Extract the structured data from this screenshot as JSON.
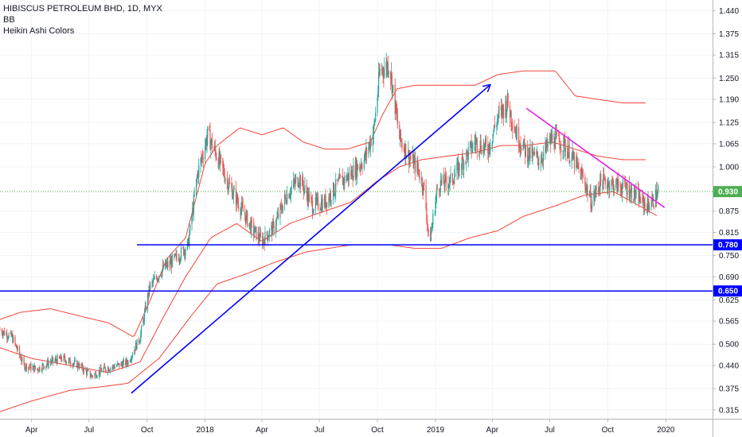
{
  "legend": {
    "symbol": "HIBISCUS PETROLEUM BHD, 1D, MYX",
    "indicator_1": "BB",
    "indicator_2": "Heikin Ashi Colors"
  },
  "chart_data": {
    "type": "candlestick",
    "symbol": "HIBISCUS PETROLEUM BHD",
    "interval": "1D",
    "exchange": "MYX",
    "y_ticks": [
      "1.440",
      "1.375",
      "1.315",
      "1.250",
      "1.190",
      "1.125",
      "1.065",
      "1.000",
      "0.875",
      "0.815",
      "0.750",
      "0.690",
      "0.625",
      "0.565",
      "0.500",
      "0.440",
      "0.375",
      "0.315"
    ],
    "y_range": [
      0.29,
      1.47
    ],
    "x_ticks": [
      "Apr",
      "Jul",
      "Oct",
      "2018",
      "Apr",
      "Jul",
      "Oct",
      "2019",
      "Apr",
      "Jul",
      "Oct",
      "2020"
    ],
    "x_tick_dates": [
      "2017-04-01",
      "2017-07-01",
      "2017-10-01",
      "2018-01-01",
      "2018-04-01",
      "2018-07-01",
      "2018-10-01",
      "2019-01-01",
      "2019-04-01",
      "2019-07-01",
      "2019-10-01",
      "2020-01-01"
    ],
    "x_range": [
      "2017-02-10",
      "2020-03-15"
    ],
    "current_price": {
      "label": "0.930",
      "value": 0.93,
      "color": "#4caf50"
    },
    "levels": [
      {
        "label": "0.780",
        "value": 0.78,
        "color": "#0000ff"
      },
      {
        "label": "0.650",
        "value": 0.65,
        "color": "#0000ff"
      }
    ],
    "trendlines": [
      {
        "name": "uptrend-arrow",
        "color": "#0000ff",
        "from": [
          "2017-09-06",
          0.362
        ],
        "to": [
          "2019-03-28",
          1.23
        ],
        "arrow": true
      },
      {
        "name": "downtrend-line",
        "color": "#e91ee6",
        "from": [
          "2019-05-25",
          1.165
        ],
        "to": [
          "2019-12-30",
          0.885
        ],
        "arrow": false
      }
    ],
    "price_series": {
      "color_up": "#26a69a",
      "color_down": "#ef5350",
      "points": [
        [
          "2017-02-10",
          0.54
        ],
        [
          "2017-03-01",
          0.52
        ],
        [
          "2017-03-20",
          0.44
        ],
        [
          "2017-04-10",
          0.43
        ],
        [
          "2017-05-01",
          0.45
        ],
        [
          "2017-05-20",
          0.46
        ],
        [
          "2017-06-15",
          0.44
        ],
        [
          "2017-07-05",
          0.41
        ],
        [
          "2017-07-25",
          0.43
        ],
        [
          "2017-08-15",
          0.44
        ],
        [
          "2017-09-01",
          0.45
        ],
        [
          "2017-09-20",
          0.52
        ],
        [
          "2017-10-05",
          0.66
        ],
        [
          "2017-10-25",
          0.71
        ],
        [
          "2017-11-15",
          0.74
        ],
        [
          "2017-12-05",
          0.78
        ],
        [
          "2017-12-20",
          0.98
        ],
        [
          "2018-01-05",
          1.09
        ],
        [
          "2018-01-20",
          1.03
        ],
        [
          "2018-02-05",
          0.96
        ],
        [
          "2018-02-25",
          0.89
        ],
        [
          "2018-03-15",
          0.83
        ],
        [
          "2018-04-01",
          0.79
        ],
        [
          "2018-04-20",
          0.83
        ],
        [
          "2018-05-10",
          0.92
        ],
        [
          "2018-05-30",
          0.97
        ],
        [
          "2018-06-20",
          0.89
        ],
        [
          "2018-07-10",
          0.9
        ],
        [
          "2018-07-30",
          0.95
        ],
        [
          "2018-08-20",
          0.98
        ],
        [
          "2018-09-10",
          1.02
        ],
        [
          "2018-09-25",
          1.1
        ],
        [
          "2018-10-05",
          1.27
        ],
        [
          "2018-10-20",
          1.29
        ],
        [
          "2018-11-05",
          1.08
        ],
        [
          "2018-11-20",
          1.03
        ],
        [
          "2018-12-05",
          0.99
        ],
        [
          "2018-12-15",
          0.93
        ],
        [
          "2018-12-22",
          0.78
        ],
        [
          "2019-01-05",
          0.95
        ],
        [
          "2019-01-25",
          0.96
        ],
        [
          "2019-02-15",
          1.02
        ],
        [
          "2019-03-05",
          1.07
        ],
        [
          "2019-03-25",
          1.05
        ],
        [
          "2019-04-10",
          1.14
        ],
        [
          "2019-04-25",
          1.18
        ],
        [
          "2019-05-10",
          1.09
        ],
        [
          "2019-05-25",
          1.04
        ],
        [
          "2019-06-15",
          1.02
        ],
        [
          "2019-07-05",
          1.08
        ],
        [
          "2019-07-25",
          1.06
        ],
        [
          "2019-08-10",
          1.01
        ],
        [
          "2019-08-25",
          0.96
        ],
        [
          "2019-09-05",
          0.9
        ],
        [
          "2019-09-20",
          0.96
        ],
        [
          "2019-10-10",
          0.95
        ],
        [
          "2019-10-30",
          0.94
        ],
        [
          "2019-11-15",
          0.92
        ],
        [
          "2019-12-01",
          0.89
        ],
        [
          "2019-12-10",
          0.9
        ],
        [
          "2019-12-20",
          0.93
        ]
      ]
    },
    "bollinger_bands": {
      "color": "#f44336",
      "upper": [
        [
          "2017-02-10",
          0.57
        ],
        [
          "2017-03-15",
          0.59
        ],
        [
          "2017-05-01",
          0.6
        ],
        [
          "2017-06-15",
          0.58
        ],
        [
          "2017-08-01",
          0.56
        ],
        [
          "2017-09-10",
          0.52
        ],
        [
          "2017-10-05",
          0.62
        ],
        [
          "2017-11-01",
          0.74
        ],
        [
          "2017-12-01",
          0.8
        ],
        [
          "2018-01-01",
          1.01
        ],
        [
          "2018-01-20",
          1.06
        ],
        [
          "2018-02-25",
          1.11
        ],
        [
          "2018-04-01",
          1.09
        ],
        [
          "2018-05-05",
          1.11
        ],
        [
          "2018-06-05",
          1.07
        ],
        [
          "2018-07-10",
          1.05
        ],
        [
          "2018-08-15",
          1.05
        ],
        [
          "2018-09-20",
          1.07
        ],
        [
          "2018-10-10",
          1.15
        ],
        [
          "2018-11-01",
          1.22
        ],
        [
          "2018-12-01",
          1.23
        ],
        [
          "2019-01-15",
          1.23
        ],
        [
          "2019-03-05",
          1.23
        ],
        [
          "2019-04-10",
          1.26
        ],
        [
          "2019-05-20",
          1.27
        ],
        [
          "2019-07-10",
          1.27
        ],
        [
          "2019-08-10",
          1.2
        ],
        [
          "2019-09-15",
          1.19
        ],
        [
          "2019-10-25",
          1.18
        ],
        [
          "2019-12-01",
          1.18
        ]
      ],
      "middle": [
        [
          "2017-02-10",
          0.49
        ],
        [
          "2017-04-01",
          0.46
        ],
        [
          "2017-06-01",
          0.44
        ],
        [
          "2017-08-01",
          0.42
        ],
        [
          "2017-09-20",
          0.45
        ],
        [
          "2017-10-25",
          0.57
        ],
        [
          "2017-12-01",
          0.69
        ],
        [
          "2018-01-10",
          0.8
        ],
        [
          "2018-02-20",
          0.84
        ],
        [
          "2018-04-01",
          0.79
        ],
        [
          "2018-05-15",
          0.84
        ],
        [
          "2018-07-01",
          0.87
        ],
        [
          "2018-08-20",
          0.9
        ],
        [
          "2018-10-01",
          0.96
        ],
        [
          "2018-11-05",
          1.0
        ],
        [
          "2018-12-10",
          1.02
        ],
        [
          "2019-01-20",
          1.03
        ],
        [
          "2019-03-05",
          1.04
        ],
        [
          "2019-04-15",
          1.06
        ],
        [
          "2019-05-25",
          1.06
        ],
        [
          "2019-07-05",
          1.07
        ],
        [
          "2019-08-10",
          1.05
        ],
        [
          "2019-09-15",
          1.03
        ],
        [
          "2019-10-25",
          1.02
        ],
        [
          "2019-12-01",
          1.02
        ]
      ],
      "lower": [
        [
          "2017-02-10",
          0.31
        ],
        [
          "2017-04-01",
          0.34
        ],
        [
          "2017-06-01",
          0.37
        ],
        [
          "2017-07-20",
          0.38
        ],
        [
          "2017-09-01",
          0.39
        ],
        [
          "2017-10-20",
          0.46
        ],
        [
          "2017-12-10",
          0.58
        ],
        [
          "2018-01-20",
          0.67
        ],
        [
          "2018-03-10",
          0.7
        ],
        [
          "2018-04-20",
          0.73
        ],
        [
          "2018-06-10",
          0.76
        ],
        [
          "2018-08-20",
          0.78
        ],
        [
          "2018-10-20",
          0.78
        ],
        [
          "2018-11-30",
          0.77
        ],
        [
          "2019-01-10",
          0.77
        ],
        [
          "2019-02-25",
          0.8
        ],
        [
          "2019-04-10",
          0.82
        ],
        [
          "2019-05-20",
          0.86
        ],
        [
          "2019-07-10",
          0.89
        ],
        [
          "2019-08-25",
          0.92
        ],
        [
          "2019-10-10",
          0.93
        ],
        [
          "2019-11-20",
          0.89
        ],
        [
          "2019-12-20",
          0.86
        ]
      ]
    }
  }
}
